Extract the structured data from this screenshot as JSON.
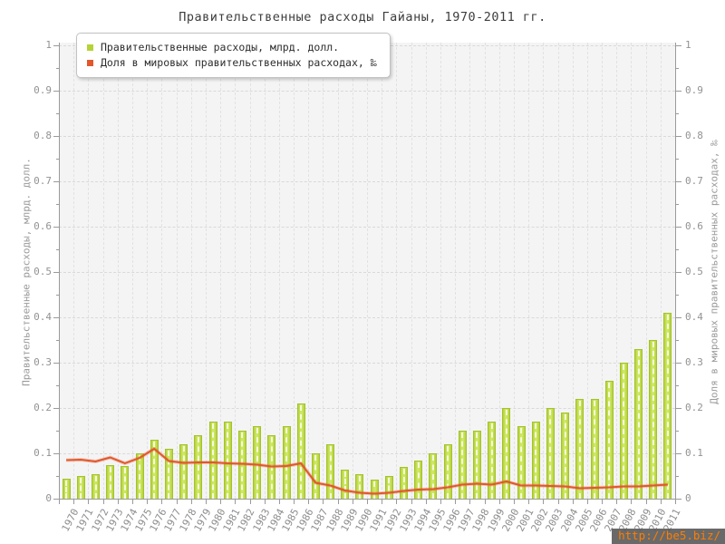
{
  "title": "Правительственные расходы Гайаны, 1970-2011 гг.",
  "watermark": "http://be5.biz/",
  "colors": {
    "bar": "#b5d335",
    "bar_border": "#a3c22e",
    "line": "#e2572b",
    "plot_bg": "#f4f4f4",
    "grid": "#d9d9d9",
    "axis": "#9a9a9a",
    "tick_label": "#929292",
    "title_text": "#3d3d3d",
    "watermark_bg": "#5c5c5c",
    "watermark_text": "#ff7d00"
  },
  "chart_data": {
    "type": "bar",
    "title": "Правительственные расходы Гайаны, 1970-2011 гг.",
    "categories": [
      "1970",
      "1971",
      "1972",
      "1973",
      "1974",
      "1975",
      "1976",
      "1977",
      "1978",
      "1979",
      "1980",
      "1981",
      "1982",
      "1983",
      "1984",
      "1985",
      "1986",
      "1987",
      "1988",
      "1989",
      "1990",
      "1991",
      "1992",
      "1993",
      "1994",
      "1995",
      "1996",
      "1997",
      "1998",
      "1999",
      "2000",
      "2001",
      "2002",
      "2003",
      "2004",
      "2005",
      "2006",
      "2007",
      "2008",
      "2009",
      "2010",
      "2011"
    ],
    "series": [
      {
        "name": "Правительственные расходы, млрд. долл.",
        "type": "bar",
        "color": "#b5d335",
        "values": [
          0.045,
          0.05,
          0.055,
          0.075,
          0.072,
          0.1,
          0.13,
          0.11,
          0.12,
          0.14,
          0.17,
          0.17,
          0.15,
          0.16,
          0.14,
          0.16,
          0.21,
          0.1,
          0.12,
          0.065,
          0.055,
          0.042,
          0.05,
          0.07,
          0.085,
          0.1,
          0.12,
          0.15,
          0.15,
          0.17,
          0.2,
          0.16,
          0.17,
          0.2,
          0.19,
          0.22,
          0.22,
          0.26,
          0.3,
          0.33,
          0.35,
          0.41
        ]
      },
      {
        "name": "Доля в мировых правительственных расходах, ‰",
        "type": "line",
        "color": "#e2572b",
        "values": [
          0.085,
          0.086,
          0.082,
          0.091,
          0.078,
          0.09,
          0.11,
          0.083,
          0.079,
          0.08,
          0.08,
          0.078,
          0.077,
          0.075,
          0.071,
          0.072,
          0.078,
          0.035,
          0.029,
          0.018,
          0.013,
          0.011,
          0.013,
          0.017,
          0.02,
          0.021,
          0.025,
          0.031,
          0.033,
          0.031,
          0.038,
          0.029,
          0.029,
          0.028,
          0.027,
          0.023,
          0.024,
          0.025,
          0.027,
          0.027,
          0.029,
          0.031
        ]
      }
    ],
    "ylabel_left": "Правительственные расходы, млрд. долл.",
    "ylabel_right": "Доля в мировых правительственных расходах, ‰",
    "ylim": [
      0,
      1
    ],
    "yticks": [
      0,
      0.1,
      0.2,
      0.3,
      0.4,
      0.5,
      0.6,
      0.7,
      0.8,
      0.9,
      1
    ],
    "grid": true,
    "legend_position": "top-left"
  }
}
